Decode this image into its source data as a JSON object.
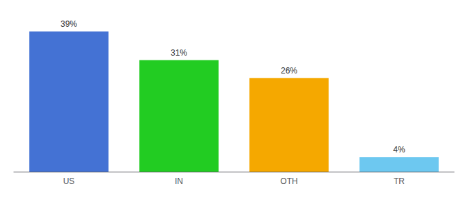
{
  "chart_data": {
    "type": "bar",
    "categories": [
      "US",
      "IN",
      "OTH",
      "TR"
    ],
    "values": [
      39,
      31,
      26,
      4
    ],
    "value_labels": [
      "39%",
      "31%",
      "26%",
      "4%"
    ],
    "colors": [
      "#4472d4",
      "#22cc22",
      "#f5a800",
      "#6dc8f0"
    ],
    "ylim": [
      0,
      42
    ],
    "data_labels": true,
    "tick_labels": "x",
    "grid": false
  }
}
